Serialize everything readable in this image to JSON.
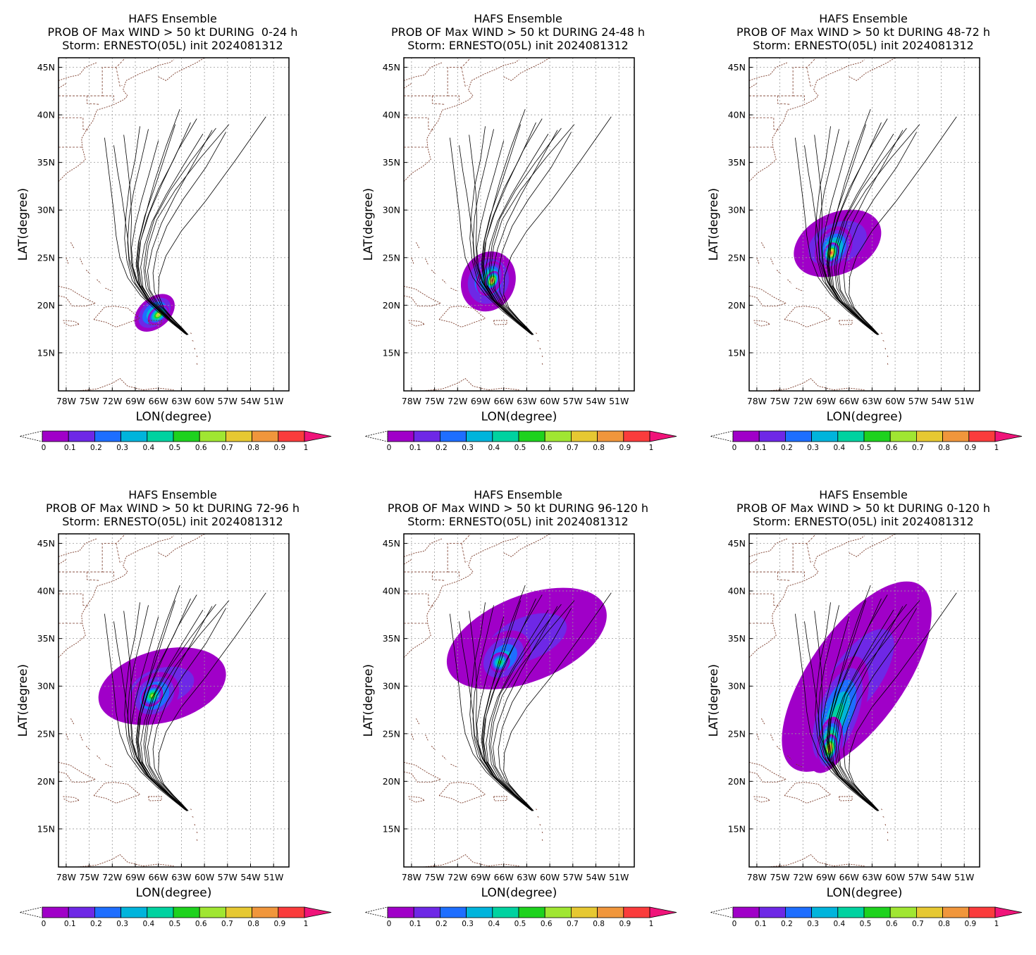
{
  "figure": {
    "panels": [
      {
        "title": "HAFS Ensemble",
        "subtitle": "PROB OF Max WIND > 50 kt DURING  0-24 h",
        "storm_line": "Storm: ERNESTO(05L) init 2024081312"
      },
      {
        "title": "HAFS Ensemble",
        "subtitle": "PROB OF Max WIND > 50 kt DURING 24-48 h",
        "storm_line": "Storm: ERNESTO(05L) init 2024081312"
      },
      {
        "title": "HAFS Ensemble",
        "subtitle": "PROB OF Max WIND > 50 kt DURING 48-72 h",
        "storm_line": "Storm: ERNESTO(05L) init 2024081312"
      },
      {
        "title": "HAFS Ensemble",
        "subtitle": "PROB OF Max WIND > 50 kt DURING 72-96 h",
        "storm_line": "Storm: ERNESTO(05L) init 2024081312"
      },
      {
        "title": "HAFS Ensemble",
        "subtitle": "PROB OF Max WIND > 50 kt DURING 96-120 h",
        "storm_line": "Storm: ERNESTO(05L) init 2024081312"
      },
      {
        "title": "HAFS Ensemble",
        "subtitle": "PROB OF Max WIND > 50 kt DURING 0-120 h",
        "storm_line": "Storm: ERNESTO(05L) init 2024081312"
      }
    ],
    "xlabel": "LON(degree)",
    "ylabel": "LAT(degree)",
    "lon_ticks": [
      "78W",
      "75W",
      "72W",
      "69W",
      "66W",
      "63W",
      "60W",
      "57W",
      "54W",
      "51W"
    ],
    "lat_ticks": [
      "15N",
      "20N",
      "25N",
      "30N",
      "35N",
      "40N",
      "45N"
    ],
    "colorbar_ticks": [
      "0",
      "0.1",
      "0.2",
      "0.3",
      "0.4",
      "0.5",
      "0.6",
      "0.7",
      "0.8",
      "0.9",
      "1"
    ],
    "colors": [
      "#a000c8",
      "#6e28e6",
      "#1e6eff",
      "#00b4dc",
      "#00d2a0",
      "#1ed21e",
      "#a0e632",
      "#e6c832",
      "#f0963c",
      "#fa3c3c",
      "#f0147a"
    ]
  },
  "chart_data": {
    "type": "heatmap",
    "x_range": [
      -79,
      -49
    ],
    "y_range": [
      11,
      46
    ],
    "panels": [
      {
        "period": "0-24 h",
        "peak_prob": 0.7,
        "blobs": [
          {
            "lon": -66.5,
            "lat": 19.2,
            "rx": 3.0,
            "ry": 1.6,
            "rot": 40,
            "p": 0.35
          },
          {
            "lon": -66.0,
            "lat": 19.0,
            "rx": 1.6,
            "ry": 0.8,
            "rot": 40,
            "p": 0.7
          }
        ]
      },
      {
        "period": "24-48 h",
        "peak_prob": 0.9,
        "blobs": [
          {
            "lon": -68.0,
            "lat": 22.5,
            "rx": 4.0,
            "ry": 2.8,
            "rot": 65,
            "p": 0.3
          },
          {
            "lon": -67.8,
            "lat": 22.8,
            "rx": 2.4,
            "ry": 1.3,
            "rot": 65,
            "p": 0.6
          },
          {
            "lon": -67.5,
            "lat": 22.6,
            "rx": 1.3,
            "ry": 0.7,
            "rot": 65,
            "p": 0.9
          }
        ]
      },
      {
        "period": "48-72 h",
        "peak_prob": 0.9,
        "blobs": [
          {
            "lon": -67.5,
            "lat": 26.5,
            "rx": 6.0,
            "ry": 3.2,
            "rot": 25,
            "p": 0.15
          },
          {
            "lon": -68.0,
            "lat": 26.0,
            "rx": 3.0,
            "ry": 1.8,
            "rot": 60,
            "p": 0.45
          },
          {
            "lon": -68.3,
            "lat": 25.5,
            "rx": 1.4,
            "ry": 0.8,
            "rot": 70,
            "p": 0.9
          }
        ]
      },
      {
        "period": "72-96 h",
        "peak_prob": 0.6,
        "blobs": [
          {
            "lon": -65.5,
            "lat": 30.0,
            "rx": 8.5,
            "ry": 3.8,
            "rot": 15,
            "p": 0.12
          },
          {
            "lon": -66.5,
            "lat": 29.0,
            "rx": 3.5,
            "ry": 2.2,
            "rot": 40,
            "p": 0.35
          },
          {
            "lon": -66.8,
            "lat": 29.0,
            "rx": 1.6,
            "ry": 1.0,
            "rot": 45,
            "p": 0.6
          }
        ]
      },
      {
        "period": "96-120 h",
        "peak_prob": 0.5,
        "blobs": [
          {
            "lon": -63.0,
            "lat": 35.0,
            "rx": 11.0,
            "ry": 4.5,
            "rot": 22,
            "p": 0.12
          },
          {
            "lon": -66.0,
            "lat": 33.0,
            "rx": 4.0,
            "ry": 2.4,
            "rot": 45,
            "p": 0.3
          },
          {
            "lon": -66.5,
            "lat": 32.5,
            "rx": 1.4,
            "ry": 1.0,
            "rot": 45,
            "p": 0.5
          }
        ]
      },
      {
        "period": "0-120 h",
        "peak_prob": 0.9,
        "blobs": [
          {
            "lon": -65.0,
            "lat": 31.0,
            "rx": 14.5,
            "ry": 5.0,
            "rot": 55,
            "p": 0.12
          },
          {
            "lon": -67.5,
            "lat": 27.0,
            "rx": 8.0,
            "ry": 2.6,
            "rot": 70,
            "p": 0.35
          },
          {
            "lon": -68.5,
            "lat": 24.0,
            "rx": 3.5,
            "ry": 1.3,
            "rot": 80,
            "p": 0.65
          },
          {
            "lon": -68.5,
            "lat": 23.5,
            "rx": 1.8,
            "ry": 0.8,
            "rot": 80,
            "p": 0.9
          }
        ]
      }
    ],
    "tracks": [
      {
        "lon": [
          -62.3,
          -63.5,
          -65.2,
          -67.0,
          -68.5,
          -69.3,
          -69.5,
          -69.0,
          -68.2,
          -67.2,
          -66.0
        ],
        "lat": [
          16.9,
          17.8,
          18.9,
          20.3,
          22.0,
          24.0,
          26.0,
          28.4,
          31.0,
          33.8,
          37.3
        ]
      },
      {
        "lon": [
          -62.3,
          -63.8,
          -65.5,
          -67.4,
          -68.8,
          -69.5,
          -69.6,
          -69.5,
          -69.6,
          -70.0,
          -70.5
        ],
        "lat": [
          16.9,
          17.9,
          19.1,
          20.6,
          22.4,
          24.5,
          26.6,
          29.0,
          31.6,
          34.6,
          37.9
        ]
      },
      {
        "lon": [
          -62.5,
          -64.0,
          -65.8,
          -67.6,
          -69.0,
          -69.8,
          -70.0,
          -70.4,
          -70.8,
          -71.3,
          -71.8
        ],
        "lat": [
          17.0,
          18.1,
          19.3,
          20.9,
          22.8,
          24.9,
          27.1,
          29.4,
          31.7,
          34.0,
          36.8
        ]
      },
      {
        "lon": [
          -62.3,
          -63.6,
          -65.3,
          -67.2,
          -68.5,
          -68.9,
          -68.6,
          -67.8,
          -66.5,
          -65.2,
          -63.8
        ],
        "lat": [
          16.9,
          17.8,
          19.0,
          20.5,
          22.2,
          24.3,
          26.6,
          29.3,
          32.3,
          35.5,
          39.0
        ]
      },
      {
        "lon": [
          -62.2,
          -63.4,
          -65.0,
          -66.8,
          -68.0,
          -68.3,
          -67.8,
          -66.8,
          -65.0,
          -62.8,
          -60.2
        ],
        "lat": [
          16.9,
          17.8,
          18.9,
          20.3,
          21.9,
          24.0,
          26.3,
          28.8,
          31.6,
          34.6,
          38.0
        ]
      },
      {
        "lon": [
          -62.3,
          -63.5,
          -65.1,
          -66.9,
          -68.2,
          -68.7,
          -68.4,
          -67.5,
          -66.0,
          -64.0,
          -61.8
        ],
        "lat": [
          16.9,
          17.8,
          18.9,
          20.4,
          22.1,
          24.2,
          26.5,
          29.1,
          32.2,
          35.3,
          39.2
        ]
      },
      {
        "lon": [
          -62.2,
          -63.3,
          -64.8,
          -66.5,
          -67.6,
          -67.9,
          -67.5,
          -66.5,
          -64.5,
          -61.8,
          -58.5
        ],
        "lat": [
          16.9,
          17.7,
          18.8,
          20.2,
          21.8,
          23.9,
          26.4,
          29.1,
          32.0,
          35.1,
          38.6
        ]
      },
      {
        "lon": [
          -62.2,
          -63.2,
          -64.6,
          -66.2,
          -67.3,
          -67.7,
          -67.3,
          -66.2,
          -63.8,
          -60.5,
          -56.8
        ],
        "lat": [
          16.9,
          17.7,
          18.7,
          20.1,
          21.7,
          23.7,
          26.2,
          29.0,
          32.1,
          35.5,
          39.0
        ]
      },
      {
        "lon": [
          -62.2,
          -63.0,
          -64.2,
          -65.6,
          -66.5,
          -66.7,
          -66.2,
          -64.9,
          -62.8,
          -59.8,
          -57.2
        ],
        "lat": [
          16.9,
          17.6,
          18.6,
          19.9,
          21.4,
          23.4,
          25.6,
          28.3,
          31.1,
          34.5,
          38.2
        ]
      },
      {
        "lon": [
          -62.1,
          -62.9,
          -64.0,
          -65.3,
          -66.0,
          -65.9,
          -65.0,
          -63.0,
          -59.8,
          -56.0,
          -52.0
        ],
        "lat": [
          16.9,
          17.6,
          18.5,
          19.7,
          21.1,
          23.0,
          25.2,
          27.8,
          31.0,
          35.2,
          39.8
        ]
      },
      {
        "lon": [
          -62.3,
          -63.7,
          -65.5,
          -67.5,
          -69.0,
          -69.8,
          -70.0,
          -69.8,
          -69.2,
          -68.3,
          -67.3
        ],
        "lat": [
          16.9,
          17.9,
          19.1,
          20.6,
          22.3,
          24.4,
          26.6,
          29.2,
          32.0,
          35.0,
          38.5
        ]
      },
      {
        "lon": [
          -62.4,
          -63.9,
          -65.7,
          -67.8,
          -69.4,
          -70.1,
          -70.4,
          -70.2,
          -69.8,
          -69.0,
          -68.4
        ],
        "lat": [
          17.0,
          18.0,
          19.2,
          20.8,
          22.6,
          24.7,
          27.0,
          29.6,
          32.4,
          35.4,
          38.8
        ]
      },
      {
        "lon": [
          -62.2,
          -63.4,
          -65.0,
          -66.9,
          -68.2,
          -68.6,
          -68.3,
          -67.2,
          -65.5,
          -63.5,
          -61.0
        ],
        "lat": [
          16.9,
          17.8,
          18.9,
          20.4,
          22.0,
          24.2,
          26.8,
          29.6,
          32.8,
          36.2,
          39.6
        ]
      },
      {
        "lon": [
          -62.3,
          -63.6,
          -65.2,
          -67.1,
          -68.4,
          -68.8,
          -68.5,
          -67.6,
          -66.5,
          -65.0,
          -63.2
        ],
        "lat": [
          16.9,
          17.8,
          18.9,
          20.4,
          22.1,
          24.3,
          26.8,
          29.7,
          33.0,
          36.7,
          40.6
        ]
      },
      {
        "lon": [
          -62.5,
          -64.2,
          -66.2,
          -68.3,
          -70.0,
          -71.0,
          -71.5,
          -71.8,
          -72.2,
          -72.6,
          -73.0
        ],
        "lat": [
          17.0,
          18.1,
          19.4,
          21.0,
          22.9,
          25.0,
          27.3,
          29.8,
          32.4,
          35.0,
          37.6
        ]
      },
      {
        "lon": [
          -62.2,
          -63.1,
          -64.4,
          -66.0,
          -67.1,
          -67.4,
          -66.8,
          -65.6,
          -63.8,
          -61.5,
          -59.0
        ],
        "lat": [
          16.9,
          17.7,
          18.7,
          20.1,
          21.6,
          23.6,
          25.9,
          28.6,
          31.5,
          34.8,
          38.4
        ]
      }
    ],
    "grid": true,
    "colorbar": "below each panel, horizontal, with triangular end arrows"
  }
}
